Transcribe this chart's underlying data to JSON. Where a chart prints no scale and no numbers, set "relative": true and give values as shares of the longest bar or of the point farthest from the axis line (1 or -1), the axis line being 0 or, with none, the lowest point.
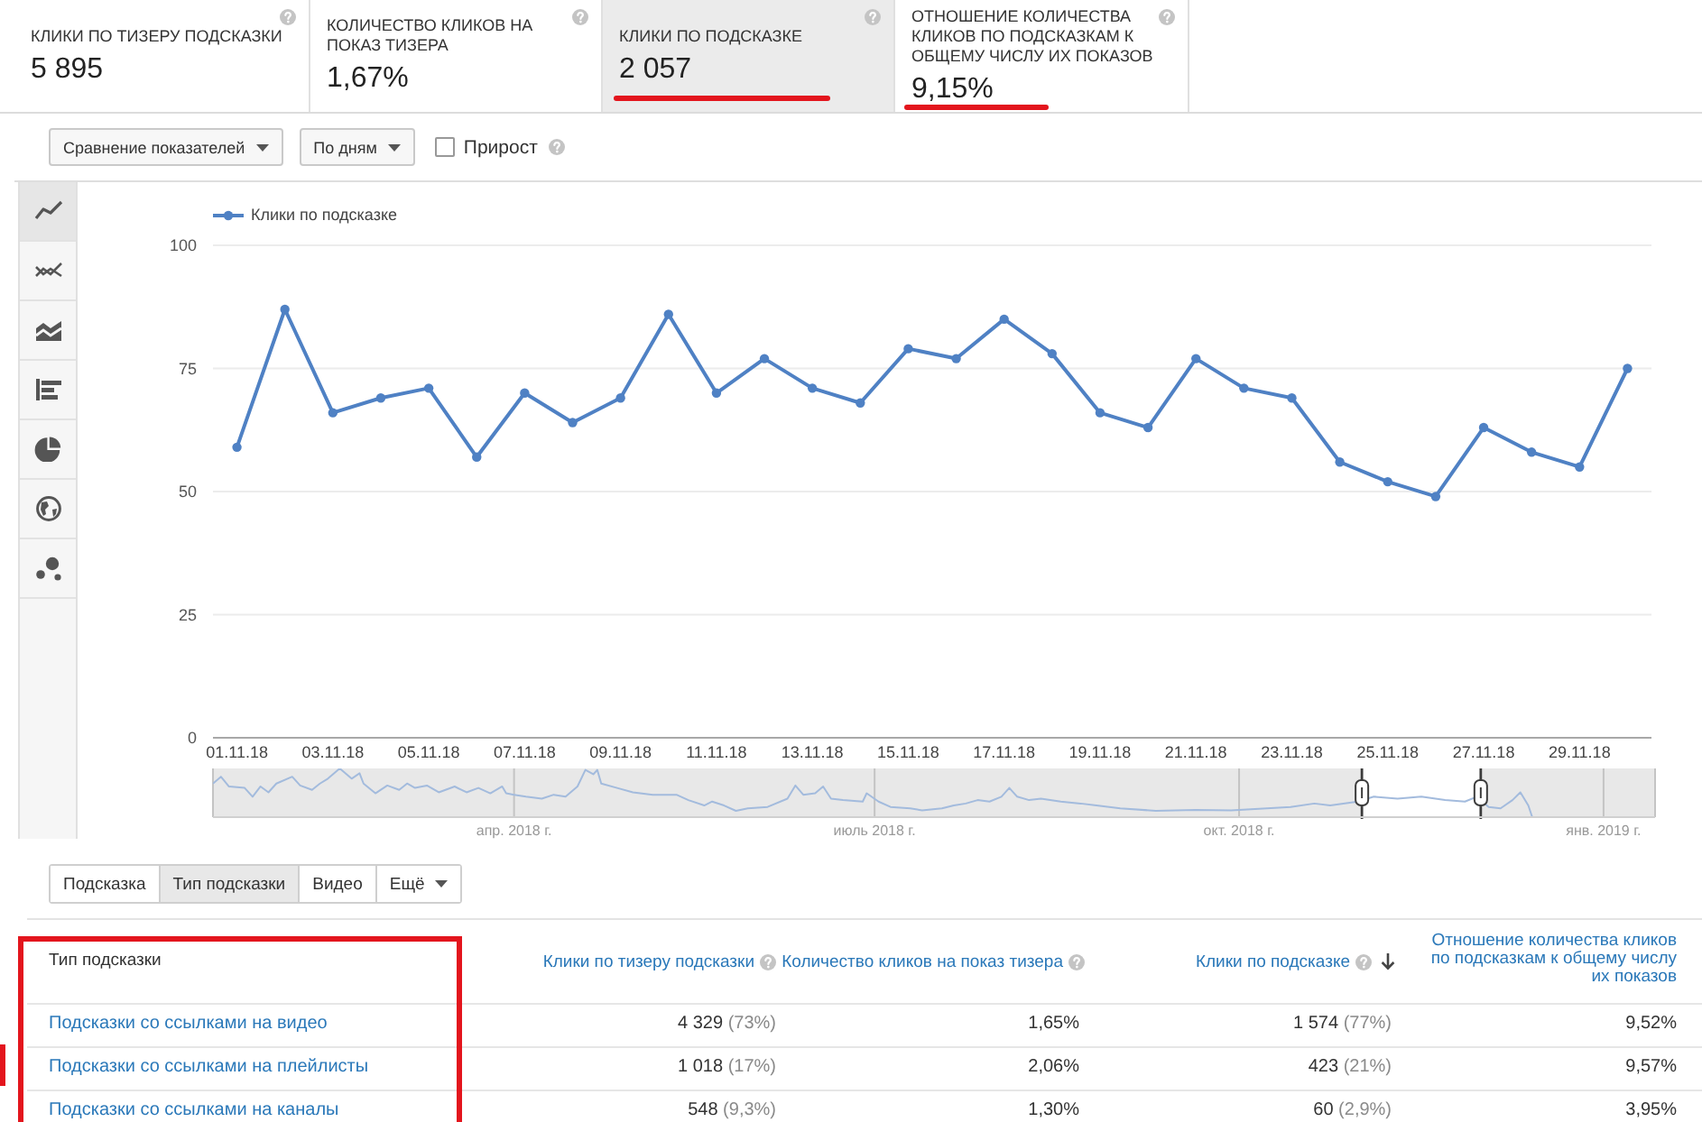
{
  "chart_data": [
    {
      "type": "other",
      "annotations": [
        "КЛИКИ ПО ТИЗЕРУ ПОДСКАЗКИ",
        "5 895",
        "КОЛИЧЕСТВО КЛИКОВ НА ПОКАЗ ТИЗЕРА",
        "1,67%",
        "КЛИКИ ПО ПОДСКАЗКЕ",
        "2 057",
        "ОТНОШЕНИЕ КОЛИЧЕСТВА КЛИКОВ ПО ПОДСКАЗКАМ К ОБЩЕМУ ЧИСЛУ ИХ ПОКАЗОВ",
        "9,15%",
        "Сравнение показателей",
        "По дням",
        "Прирост"
      ]
    },
    {
      "type": "line",
      "categories": [
        "01.11.18",
        null,
        "03.11.18",
        null,
        "05.11.18",
        null,
        "07.11.18",
        null,
        "09.11.18",
        null,
        "11.11.18",
        null,
        "13.11.18",
        null,
        "15.11.18",
        null,
        "17.11.18",
        null,
        "19.11.18",
        null,
        "21.11.18",
        null,
        "23.11.18",
        null,
        "25.11.18",
        null,
        "27.11.18",
        null,
        "29.11.18",
        null
      ],
      "series": [
        {
          "name": "Клики по подсказке",
          "color": "#4f81c4",
          "values": [
            59,
            87,
            66,
            69,
            71,
            57,
            70,
            64,
            69,
            86,
            70,
            77,
            71,
            68,
            79,
            77,
            85,
            78,
            66,
            63,
            77,
            71,
            69,
            56,
            52,
            49,
            63,
            58,
            55,
            75
          ]
        }
      ],
      "ylim": [
        0,
        100
      ],
      "yticks": [
        0,
        25,
        50,
        75,
        100
      ],
      "grid": "y",
      "legend": "top left",
      "marker": "circle",
      "line_style": "solid"
    },
    {
      "type": "line",
      "relative": true,
      "x": [
        "2018-01-15",
        "2018-01-17",
        "2018-01-19",
        "2018-01-23",
        "2018-01-25",
        "2018-01-27",
        "2018-01-29",
        "2018-01-31",
        "2018-02-04",
        "2018-02-06",
        "2018-02-09",
        "2018-02-11",
        "2018-02-13",
        "2018-02-16",
        "2018-02-17",
        "2018-02-19",
        "2018-02-21",
        "2018-02-22",
        "2018-02-25",
        "2018-02-28",
        "2018-03-03",
        "2018-03-05",
        "2018-03-07",
        "2018-03-10",
        "2018-03-13",
        "2018-03-17",
        "2018-03-20",
        "2018-03-23",
        "2018-03-26",
        "2018-03-29",
        "2018-03-30",
        "2018-04-01",
        "2018-04-04",
        "2018-04-08",
        "2018-04-11",
        "2018-04-14",
        "2018-04-17",
        "2018-04-19",
        "2018-04-21",
        "2018-04-22",
        "2018-04-23",
        "2018-04-27",
        "2018-05-01",
        "2018-05-06",
        "2018-05-12",
        "2018-05-15",
        "2018-05-19",
        "2018-05-21",
        "2018-05-24",
        "2018-05-27",
        "2018-05-30",
        "2018-06-04",
        "2018-06-09",
        "2018-06-11",
        "2018-06-13",
        "2018-06-16",
        "2018-06-18",
        "2018-06-20",
        "2018-06-23",
        "2018-06-28",
        "2018-06-29",
        "2018-07-02",
        "2018-07-05",
        "2018-07-10",
        "2018-07-13",
        "2018-07-18",
        "2018-07-21",
        "2018-07-24",
        "2018-07-27",
        "2018-07-30",
        "2018-08-02",
        "2018-08-04",
        "2018-08-06",
        "2018-08-09",
        "2018-08-12",
        "2018-08-17",
        "2018-08-22",
        "2018-08-26",
        "2018-09-01",
        "2018-09-10",
        "2018-09-20",
        "2018-09-29",
        "2018-10-08",
        "2018-10-14",
        "2018-10-20",
        "2018-10-24",
        "2018-10-31",
        "2018-11-04",
        "2018-11-10",
        "2018-11-16",
        "2018-11-22",
        "2018-11-27",
        "2018-11-30",
        "2018-12-03",
        "2018-12-06",
        "2018-12-09",
        "2018-12-11",
        "2018-12-13",
        "2018-12-14",
        "2019-01-14"
      ],
      "series": [
        {
          "color": "#a3bbdd",
          "values": [
            0.69,
            0.83,
            0.63,
            0.6,
            0.42,
            0.63,
            0.51,
            0.69,
            0.83,
            0.65,
            0.56,
            0.69,
            0.79,
            1,
            0.93,
            0.79,
            0.9,
            0.69,
            0.49,
            0.65,
            0.56,
            0.69,
            0.6,
            0.65,
            0.51,
            0.63,
            0.51,
            0.6,
            0.49,
            0.63,
            0.49,
            0.46,
            0.42,
            0.38,
            0.46,
            0.42,
            0.63,
            0.97,
            0.88,
            0.97,
            0.69,
            0.6,
            0.51,
            0.46,
            0.46,
            0.35,
            0.24,
            0.32,
            0.24,
            0.13,
            0.18,
            0.21,
            0.38,
            0.65,
            0.46,
            0.49,
            0.63,
            0.38,
            0.35,
            0.32,
            0.49,
            0.32,
            0.21,
            0.18,
            0.14,
            0.18,
            0.24,
            0.28,
            0.35,
            0.32,
            0.42,
            0.6,
            0.42,
            0.35,
            0.38,
            0.32,
            0.28,
            0.24,
            0.18,
            0.13,
            0.15,
            0.14,
            0.18,
            0.21,
            0.28,
            0.24,
            0.32,
            0.42,
            0.38,
            0.42,
            0.35,
            0.32,
            0.42,
            0.21,
            0.18,
            0.35,
            0.51,
            0.24,
            0,
            0
          ]
        }
      ],
      "xlim": [
        "2018-01-15",
        "2019-01-14"
      ],
      "xticks": [
        {
          "value": "2018-04-01",
          "label": "апр. 2018 г."
        },
        {
          "value": "2018-07-01",
          "label": "июль 2018 г."
        },
        {
          "value": "2018-10-01",
          "label": "окт. 2018 г."
        },
        {
          "value": "2019-01-01",
          "label": "янв. 2019 г."
        }
      ],
      "grid": "x",
      "tick_labels": "x",
      "bands": [
        {
          "axis": "x",
          "from": "2018-01-15",
          "to": "2018-11-01",
          "color": "#e8e8e8"
        },
        {
          "axis": "x",
          "from": "2018-12-01",
          "to": "2019-01-14",
          "color": "#e8e8e8"
        }
      ]
    },
    {
      "type": "other",
      "annotations": [
        "Подсказка",
        "Тип подсказки",
        "Видео",
        "Ещё",
        "Тип подсказки",
        "Клики по тизеру подсказки",
        "Количество кликов на показ тизера",
        "Клики по подсказке",
        "Отношение количества кликов по подсказкам к общему числу их показов",
        "Подсказки со ссылками на видео",
        "4 329 (73%)",
        "1,65%",
        "1 574 (77%)",
        "9,52%",
        "Подсказки со ссылками на плейлисты",
        "1 018 (17%)",
        "2,06%",
        "423 (21%)",
        "9,57%",
        "Подсказки со ссылками на каналы",
        "548 (9,3%)",
        "1,30%",
        "60 (2,9%)",
        "3,95%"
      ]
    }
  ]
}
